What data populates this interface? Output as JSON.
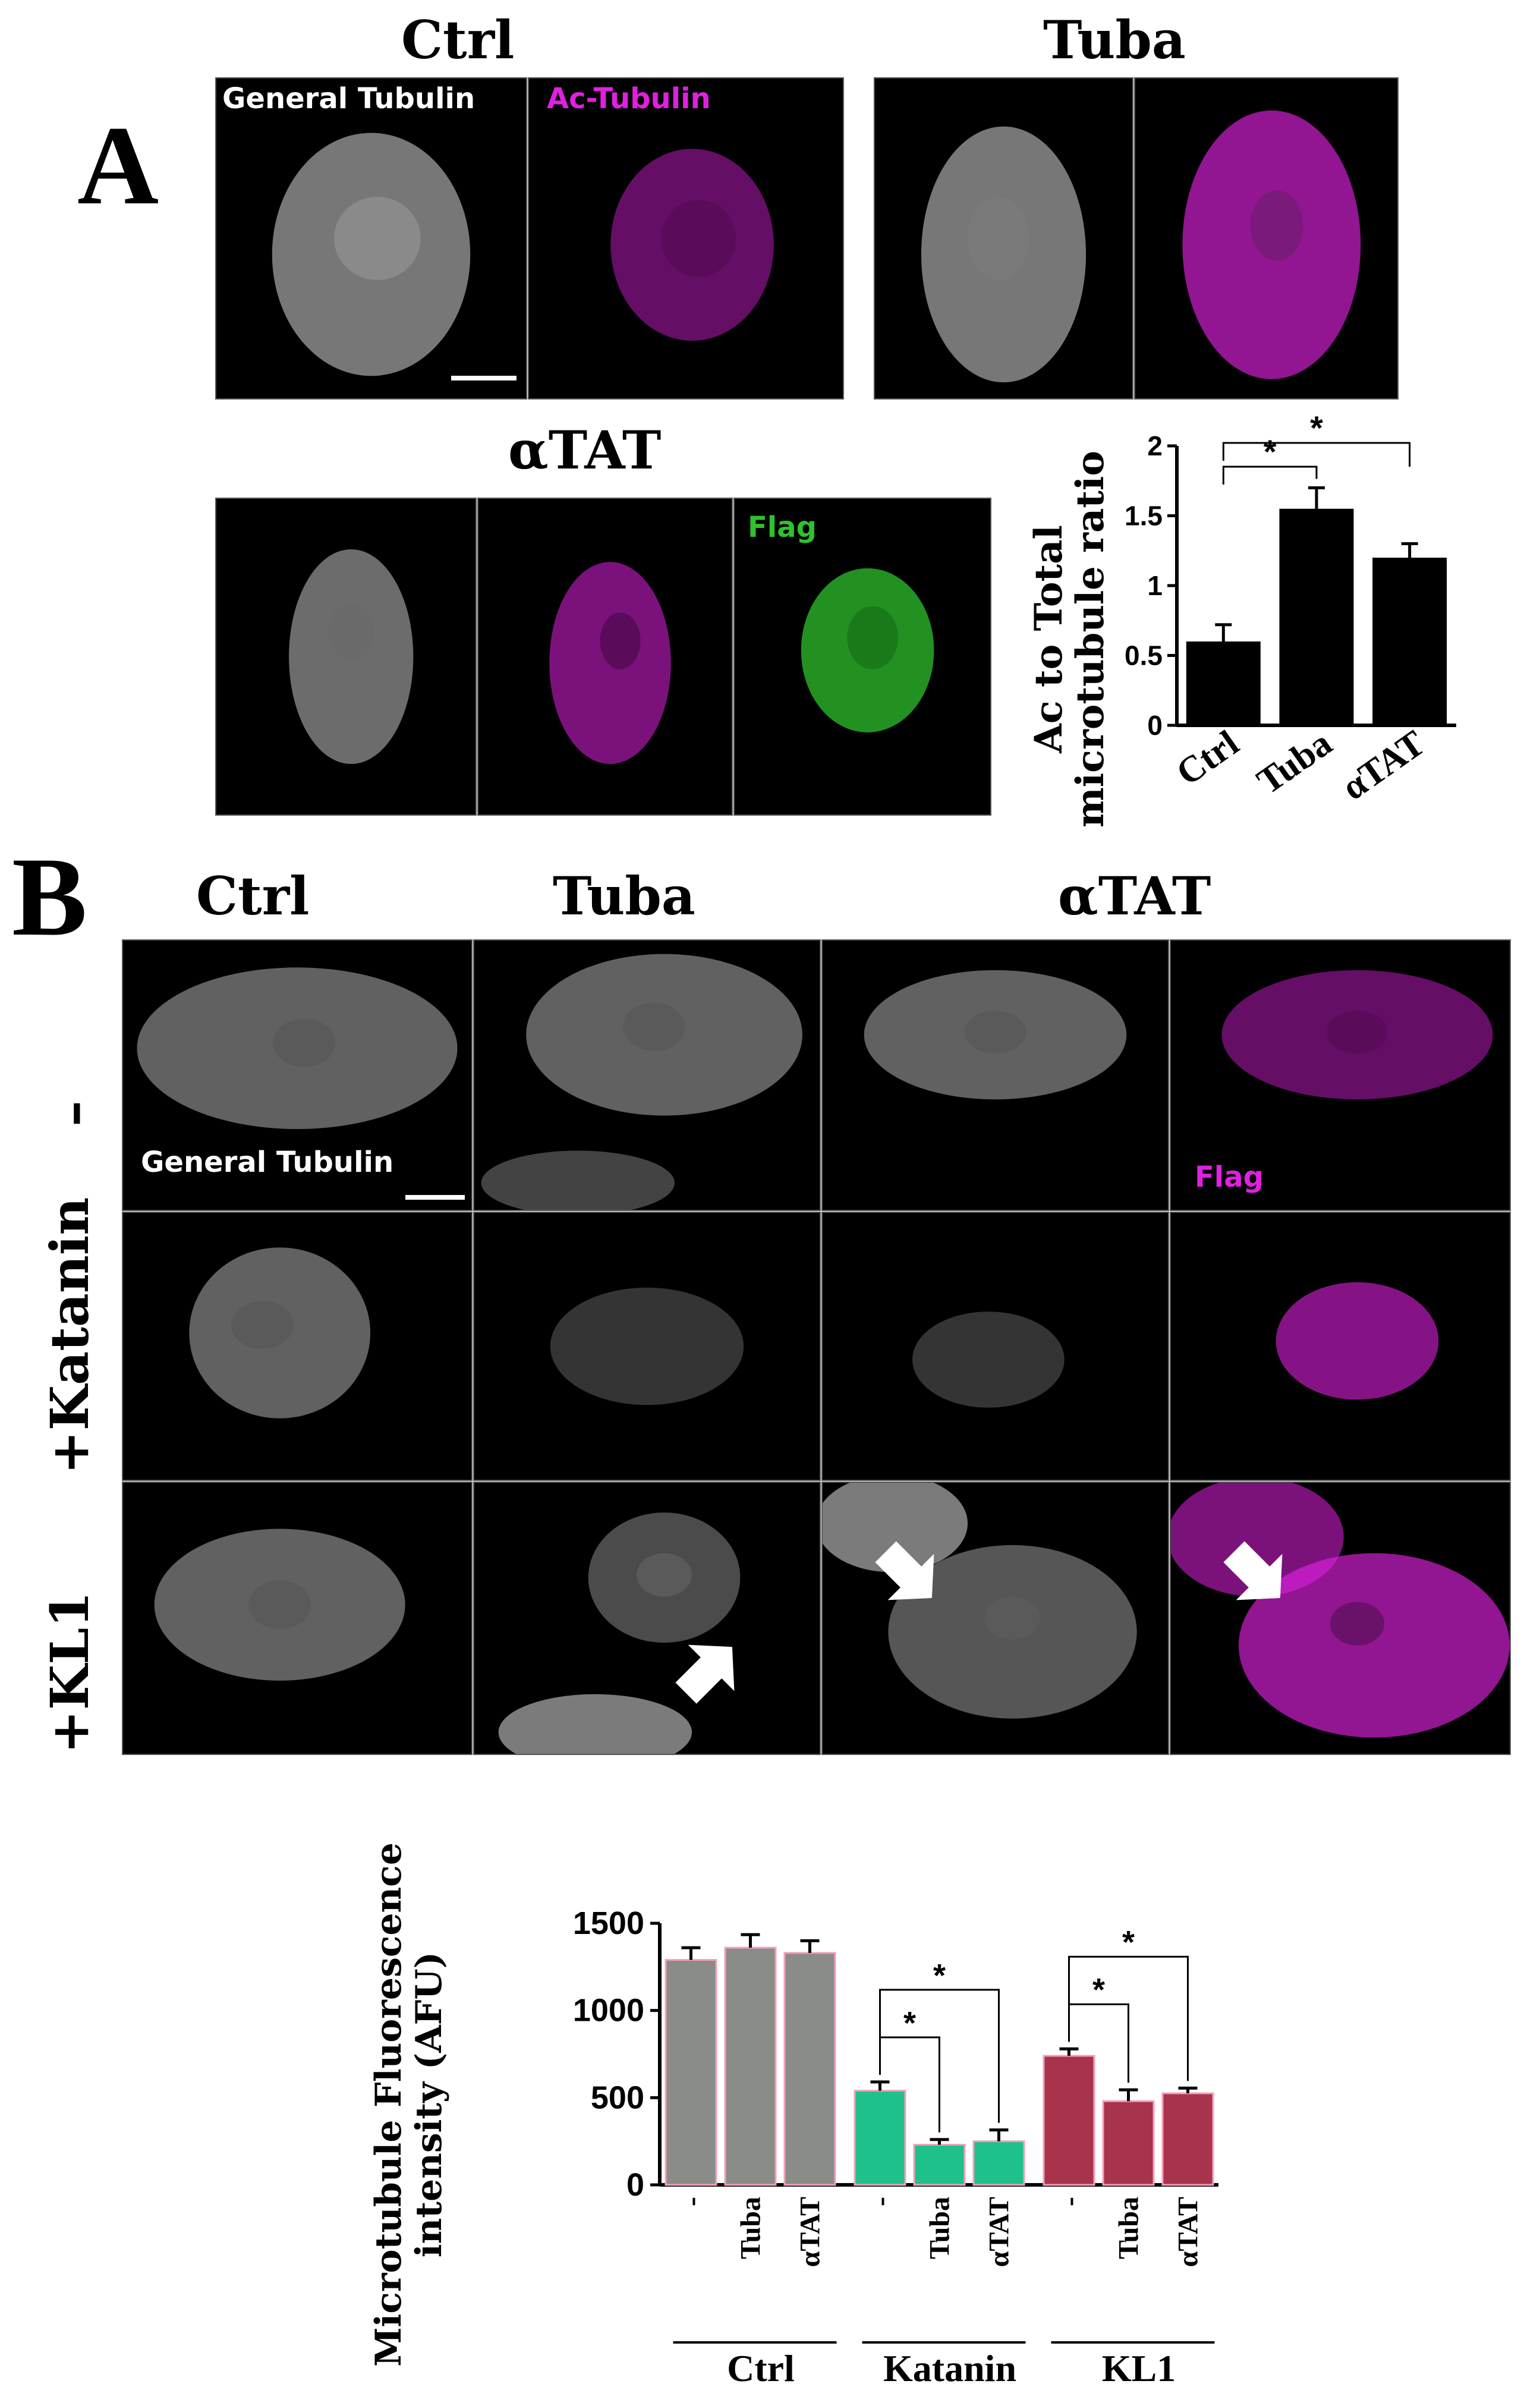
{
  "panelA": {
    "letter": "A",
    "groups": [
      "Ctrl",
      "Tuba",
      "αTAT"
    ],
    "labels": {
      "general_tubulin": "General Tubulin",
      "ac_tubulin": "Ac-Tubulin",
      "flag": "Flag"
    }
  },
  "panelB": {
    "letter": "B",
    "columns": [
      "Ctrl",
      "Tuba",
      "αTAT"
    ],
    "rows": [
      "–",
      "+Katanin",
      "+KL1"
    ],
    "labels": {
      "general_tubulin": "General Tubulin",
      "flag": "Flag"
    }
  },
  "colors": {
    "gray_channel": "#ffffff",
    "magenta_channel": "#e020e0",
    "green_channel": "#2ec22e",
    "bar_black": "#000000",
    "bar_gray": "#8a8c88",
    "bar_teal": "#1ec08c",
    "bar_crimson": "#a8334d",
    "bar_outline_pink": "#f4a0b8",
    "arrow": "#ffffff"
  },
  "chart_data": [
    {
      "type": "bar",
      "categories": [
        "Ctrl",
        "Tuba",
        "αTAT"
      ],
      "values": [
        0.6,
        1.55,
        1.2
      ],
      "errors": [
        0.12,
        0.15,
        0.1
      ],
      "ylabel": "Ac to Total microtubule ratio",
      "ylim": [
        0,
        2
      ],
      "yticks": [
        "0",
        "0.5",
        "1",
        "1.5",
        "2"
      ],
      "significance": [
        {
          "from": "Ctrl",
          "to": "Tuba",
          "label": "*"
        },
        {
          "from": "Ctrl",
          "to": "αTAT",
          "label": "*"
        }
      ]
    },
    {
      "type": "bar",
      "groups": [
        "Ctrl",
        "Katanin",
        "KL1"
      ],
      "categories": [
        "-",
        "Tuba",
        "αTAT",
        "-",
        "Tuba",
        "αTAT",
        "-",
        "Tuba",
        "αTAT"
      ],
      "values": [
        1290,
        1360,
        1330,
        540,
        230,
        250,
        740,
        480,
        525
      ],
      "errors": [
        70,
        75,
        70,
        50,
        30,
        65,
        40,
        65,
        30
      ],
      "ylabel": "Microtubule Fluorescence intensity (AFU)",
      "ylim": [
        0,
        1500
      ],
      "yticks": [
        "0",
        "500",
        "1000",
        "1500"
      ],
      "significance": [
        {
          "group": "Katanin",
          "from": "-",
          "to": "Tuba",
          "label": "*"
        },
        {
          "group": "Katanin",
          "from": "-",
          "to": "αTAT",
          "label": "*"
        },
        {
          "group": "KL1",
          "from": "-",
          "to": "Tuba",
          "label": "*"
        },
        {
          "group": "KL1",
          "from": "-",
          "to": "αTAT",
          "label": "*"
        }
      ]
    }
  ]
}
